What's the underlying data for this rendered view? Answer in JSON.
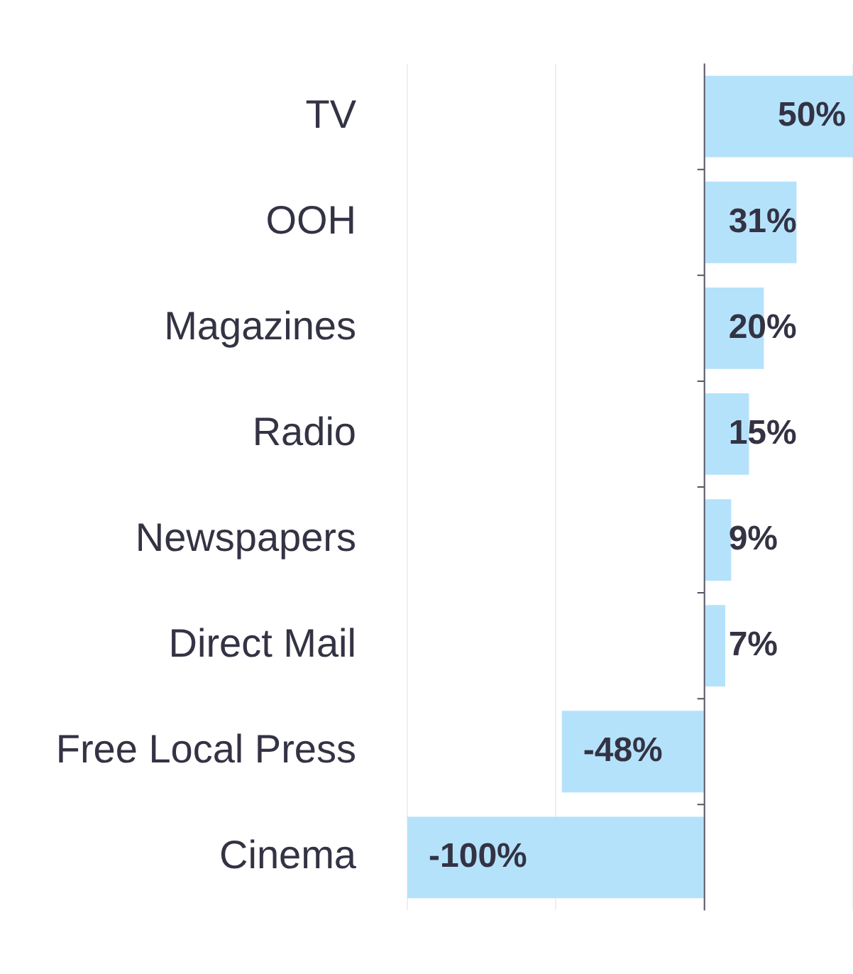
{
  "chart_data": {
    "type": "bar",
    "orientation": "horizontal",
    "categories": [
      "TV",
      "OOH",
      "Magazines",
      "Radio",
      "Newspapers",
      "Direct Mail",
      "Free Local Press",
      "Cinema"
    ],
    "values": [
      50,
      31,
      20,
      15,
      9,
      7,
      -48,
      -100
    ],
    "value_labels": [
      "50%",
      "31%",
      "20%",
      "15%",
      "9%",
      "7%",
      "-48%",
      "-100%"
    ],
    "color": "#b5e2fb",
    "xlim": [
      -100,
      50
    ],
    "xticks": [
      {
        "value": -100,
        "label": null
      },
      {
        "value": -50,
        "label": null
      },
      {
        "value": 0,
        "label": null
      },
      {
        "value": 50,
        "label": null
      }
    ],
    "tick_labels": "y",
    "grid": "x",
    "legend": false
  }
}
